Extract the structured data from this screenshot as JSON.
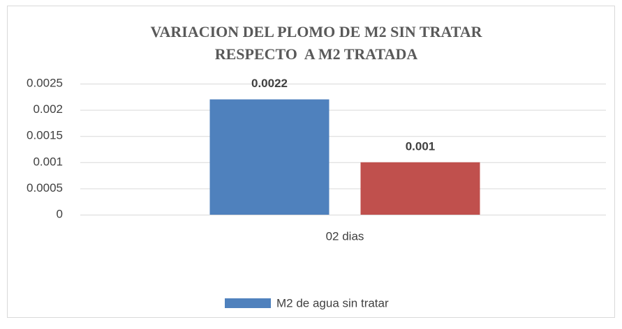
{
  "chart_data": {
    "type": "bar",
    "title": [
      "VARIACION DEL PLOMO DE M2 SIN TRATAR",
      "RESPECTO  A M2 TRATADA"
    ],
    "categories": [
      "02 dias"
    ],
    "series": [
      {
        "name": "M2 de agua sin tratar",
        "color": "#4f81bd",
        "values": [
          0.0022
        ]
      },
      {
        "color": "#c0504d",
        "values": [
          0.001
        ]
      }
    ],
    "ylim": [
      0,
      0.0025
    ],
    "yticks": [
      0,
      0.0005,
      0.001,
      0.0015,
      0.002,
      0.0025
    ],
    "grid": true,
    "legend": "bottom"
  }
}
